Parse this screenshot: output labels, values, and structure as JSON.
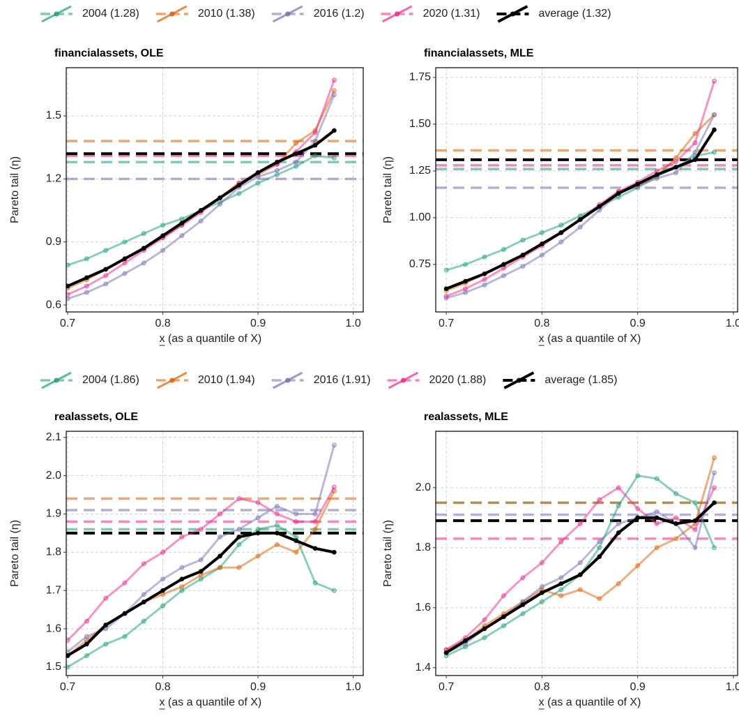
{
  "chart_data": [
    {
      "type": "line",
      "title": "financialassets, OLE",
      "xlabel": "x (as a quantile of X)",
      "ylabel": "Pareto tail (η)",
      "xlim": [
        0.6985,
        1.0105
      ],
      "ylim": [
        0.567,
        1.729
      ],
      "xticks": [
        0.7,
        0.8,
        0.9,
        {
          "value": 1,
          "label": "1.0"
        }
      ],
      "yticks": [
        0.6,
        0.9,
        1.2,
        1.5
      ],
      "grid": true,
      "x": [
        0.7,
        0.72,
        0.74,
        0.76,
        0.78,
        0.8,
        0.82,
        0.84,
        0.86,
        0.88,
        0.9,
        0.92,
        0.94,
        0.96,
        0.98
      ],
      "series": [
        {
          "name": "2004 (1.28)",
          "color": "#1b9e77",
          "level": 1.28,
          "values": [
            0.79,
            0.82,
            0.86,
            0.9,
            0.94,
            0.98,
            1.01,
            1.05,
            1.09,
            1.13,
            1.18,
            1.22,
            1.26,
            1.31,
            1.3
          ]
        },
        {
          "name": "2010 (1.38)",
          "color": "#d95f02",
          "level": 1.38,
          "values": [
            0.68,
            0.72,
            0.77,
            0.82,
            0.87,
            0.92,
            0.98,
            1.05,
            1.11,
            1.18,
            1.22,
            1.27,
            1.37,
            1.43,
            1.62
          ]
        },
        {
          "name": "2016 (1.2)",
          "color": "#7570b3",
          "level": 1.2,
          "values": [
            0.63,
            0.66,
            0.7,
            0.75,
            0.8,
            0.86,
            0.93,
            1.0,
            1.08,
            1.16,
            1.21,
            1.24,
            1.28,
            1.38,
            1.6
          ]
        },
        {
          "name": "2020 (1.31)",
          "color": "#e7298a",
          "level": 1.31,
          "values": [
            0.65,
            0.69,
            0.74,
            0.8,
            0.86,
            0.92,
            0.98,
            1.04,
            1.11,
            1.18,
            1.23,
            1.27,
            1.33,
            1.42,
            1.67
          ]
        },
        {
          "name": "average (1.32)",
          "color": "#000000",
          "level": 1.32,
          "values": [
            0.69,
            0.73,
            0.77,
            0.82,
            0.87,
            0.93,
            0.99,
            1.05,
            1.11,
            1.17,
            1.23,
            1.28,
            1.32,
            1.36,
            1.43
          ]
        }
      ]
    },
    {
      "type": "line",
      "title": "financialassets, MLE",
      "xlabel": "x (as a quantile of X)",
      "ylabel": "Pareto tail (η)",
      "xlim": [
        0.689,
        1.0044
      ],
      "ylim": [
        0.496,
        1.802
      ],
      "xticks": [
        0.7,
        0.8,
        0.9,
        {
          "value": 1,
          "label": "1.0"
        }
      ],
      "yticks": [
        0.75,
        {
          "value": 1,
          "label": "1.00"
        },
        1.25,
        {
          "value": 1.5,
          "label": "1.50"
        },
        1.75
      ],
      "grid": true,
      "x": [
        0.7,
        0.72,
        0.74,
        0.76,
        0.78,
        0.8,
        0.82,
        0.84,
        0.86,
        0.88,
        0.9,
        0.92,
        0.94,
        0.96,
        0.98
      ],
      "series": [
        {
          "color": "#1b9e77",
          "level": 1.26,
          "values": [
            0.72,
            0.75,
            0.79,
            0.83,
            0.88,
            0.92,
            0.96,
            1.01,
            1.06,
            1.11,
            1.16,
            1.22,
            1.27,
            1.33,
            1.35
          ]
        },
        {
          "color": "#d95f02",
          "level": 1.36,
          "values": [
            0.61,
            0.65,
            0.7,
            0.75,
            0.8,
            0.86,
            0.92,
            0.99,
            1.06,
            1.14,
            1.17,
            1.22,
            1.32,
            1.45,
            1.55
          ]
        },
        {
          "color": "#7570b3",
          "level": 1.16,
          "values": [
            0.57,
            0.6,
            0.64,
            0.69,
            0.74,
            0.8,
            0.87,
            0.95,
            1.04,
            1.13,
            1.17,
            1.21,
            1.24,
            1.35,
            1.55
          ]
        },
        {
          "color": "#e7298a",
          "level": 1.28,
          "values": [
            0.58,
            0.62,
            0.67,
            0.73,
            0.79,
            0.85,
            0.92,
            0.99,
            1.07,
            1.14,
            1.19,
            1.25,
            1.3,
            1.4,
            1.73
          ]
        },
        {
          "color": "#000000",
          "level": 1.31,
          "values": [
            0.62,
            0.66,
            0.7,
            0.75,
            0.8,
            0.86,
            0.92,
            0.99,
            1.06,
            1.13,
            1.18,
            1.23,
            1.27,
            1.31,
            1.47
          ]
        }
      ]
    },
    {
      "type": "line",
      "title": "realassets, OLE",
      "xlabel": "x (as a quantile of X)",
      "ylabel": "Pareto tail (η)",
      "xlim": [
        0.6985,
        1.0105
      ],
      "ylim": [
        1.478,
        2.116
      ],
      "xticks": [
        0.7,
        0.8,
        0.9,
        {
          "value": 1,
          "label": "1.0"
        }
      ],
      "yticks": [
        1.5,
        1.6,
        1.7,
        1.8,
        1.9,
        {
          "value": 2,
          "label": "2.0"
        },
        2.1
      ],
      "grid": true,
      "x": [
        0.7,
        0.72,
        0.74,
        0.76,
        0.78,
        0.8,
        0.82,
        0.84,
        0.86,
        0.88,
        0.9,
        0.92,
        0.94,
        0.96,
        0.98
      ],
      "series": [
        {
          "name": "2004 (1.86)",
          "color": "#1b9e77",
          "level": 1.86,
          "values": [
            1.5,
            1.53,
            1.56,
            1.58,
            1.62,
            1.66,
            1.7,
            1.73,
            1.76,
            1.82,
            1.86,
            1.87,
            1.84,
            1.72,
            1.7
          ]
        },
        {
          "name": "2010 (1.94)",
          "color": "#d95f02",
          "level": 1.94,
          "values": [
            1.53,
            1.57,
            1.61,
            1.64,
            1.67,
            1.69,
            1.71,
            1.74,
            1.76,
            1.76,
            1.79,
            1.82,
            1.8,
            1.86,
            1.96
          ]
        },
        {
          "name": "2016 (1.91)",
          "color": "#7570b3",
          "level": 1.91,
          "values": [
            1.54,
            1.58,
            1.6,
            1.64,
            1.69,
            1.73,
            1.76,
            1.78,
            1.84,
            1.86,
            1.89,
            1.92,
            1.9,
            1.9,
            2.08
          ]
        },
        {
          "name": "2020 (1.88)",
          "color": "#e7298a",
          "level": 1.88,
          "values": [
            1.57,
            1.62,
            1.68,
            1.72,
            1.77,
            1.8,
            1.84,
            1.86,
            1.9,
            1.94,
            1.93,
            1.9,
            1.88,
            1.88,
            1.97
          ]
        },
        {
          "name": "average (1.85)",
          "color": "#000000",
          "level": 1.85,
          "values": [
            1.53,
            1.56,
            1.61,
            1.64,
            1.67,
            1.7,
            1.73,
            1.75,
            1.79,
            1.84,
            1.85,
            1.85,
            1.83,
            1.81,
            1.8
          ]
        }
      ]
    },
    {
      "type": "line",
      "title": "realassets, MLE",
      "xlabel": "x (as a quantile of X)",
      "ylabel": "Pareto tail (η)",
      "xlim": [
        0.689,
        1.0044
      ],
      "ylim": [
        1.374,
        2.188
      ],
      "xticks": [
        0.7,
        0.8,
        0.9,
        {
          "value": 1,
          "label": "1.0"
        }
      ],
      "yticks": [
        1.4,
        1.6,
        1.8,
        {
          "value": 2,
          "label": "2.0"
        }
      ],
      "grid": true,
      "x": [
        0.7,
        0.72,
        0.74,
        0.76,
        0.78,
        0.8,
        0.82,
        0.84,
        0.86,
        0.88,
        0.9,
        0.92,
        0.94,
        0.96,
        0.98
      ],
      "series": [
        {
          "color": "#1b9e77",
          "level": 1.95,
          "values": [
            1.44,
            1.47,
            1.5,
            1.54,
            1.58,
            1.62,
            1.66,
            1.71,
            1.8,
            1.94,
            2.04,
            2.03,
            1.98,
            1.95,
            1.8
          ]
        },
        {
          "color": "#d95f02",
          "level": 1.95,
          "values": [
            1.46,
            1.49,
            1.54,
            1.58,
            1.62,
            1.66,
            1.64,
            1.66,
            1.63,
            1.68,
            1.74,
            1.8,
            1.83,
            1.88,
            2.1
          ]
        },
        {
          "color": "#7570b3",
          "level": 1.91,
          "values": [
            1.45,
            1.48,
            1.53,
            1.57,
            1.62,
            1.67,
            1.7,
            1.75,
            1.82,
            1.88,
            1.9,
            1.92,
            1.88,
            1.8,
            2.05
          ]
        },
        {
          "color": "#e7298a",
          "level": 1.83,
          "values": [
            1.46,
            1.5,
            1.56,
            1.64,
            1.7,
            1.75,
            1.82,
            1.88,
            1.96,
            2.0,
            1.93,
            1.88,
            1.9,
            1.86,
            2.0
          ]
        },
        {
          "color": "#000000",
          "level": 1.89,
          "values": [
            1.45,
            1.49,
            1.53,
            1.57,
            1.61,
            1.65,
            1.68,
            1.71,
            1.77,
            1.85,
            1.9,
            1.9,
            1.88,
            1.89,
            1.95
          ]
        }
      ]
    }
  ]
}
